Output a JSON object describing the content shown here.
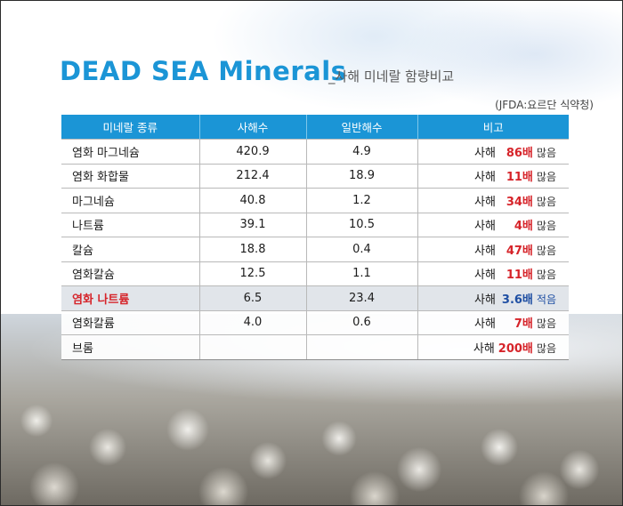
{
  "title": {
    "main": "DEAD SEA Minerals",
    "sub": "_사해 미네랄 함량비교"
  },
  "source": "(JFDA:요르단 식약청)",
  "table": {
    "headers": [
      "미네랄 종류",
      "사해수",
      "일반해수",
      "비고"
    ],
    "rows": [
      {
        "name": "염화 마그네슘",
        "dead_sea": "420.9",
        "sea": "4.9",
        "prefix": "사해",
        "factor": "86배",
        "suffix": "많음"
      },
      {
        "name": "염화 화합물",
        "dead_sea": "212.4",
        "sea": "18.9",
        "prefix": "사해",
        "factor": "11배",
        "suffix": "많음"
      },
      {
        "name": "마그네슘",
        "dead_sea": "40.8",
        "sea": "1.2",
        "prefix": "사해",
        "factor": "34배",
        "suffix": "많음"
      },
      {
        "name": "나트륨",
        "dead_sea": "39.1",
        "sea": "10.5",
        "prefix": "사해",
        "factor": "4배",
        "suffix": "많음"
      },
      {
        "name": "칼슘",
        "dead_sea": "18.8",
        "sea": "0.4",
        "prefix": "사해",
        "factor": "47배",
        "suffix": "많음"
      },
      {
        "name": "염화칼슘",
        "dead_sea": "12.5",
        "sea": "1.1",
        "prefix": "사해",
        "factor": "11배",
        "suffix": "많음"
      },
      {
        "name": "염화 나트륨",
        "dead_sea": "6.5",
        "sea": "23.4",
        "prefix": "사해",
        "factor": "3.6배",
        "suffix": "적음"
      },
      {
        "name": "염화칼륨",
        "dead_sea": "4.0",
        "sea": "0.6",
        "prefix": "사해",
        "factor": "7배",
        "suffix": "많음"
      },
      {
        "name": "브롬",
        "dead_sea": "",
        "sea": "",
        "prefix": "사해",
        "factor": "200배",
        "suffix": "많음"
      }
    ]
  },
  "colors": {
    "accent": "#1b95d6",
    "highlight_text": "#d6242a",
    "less_text": "#1f4fa3",
    "highlight_row_bg": "#e1e5ea"
  }
}
